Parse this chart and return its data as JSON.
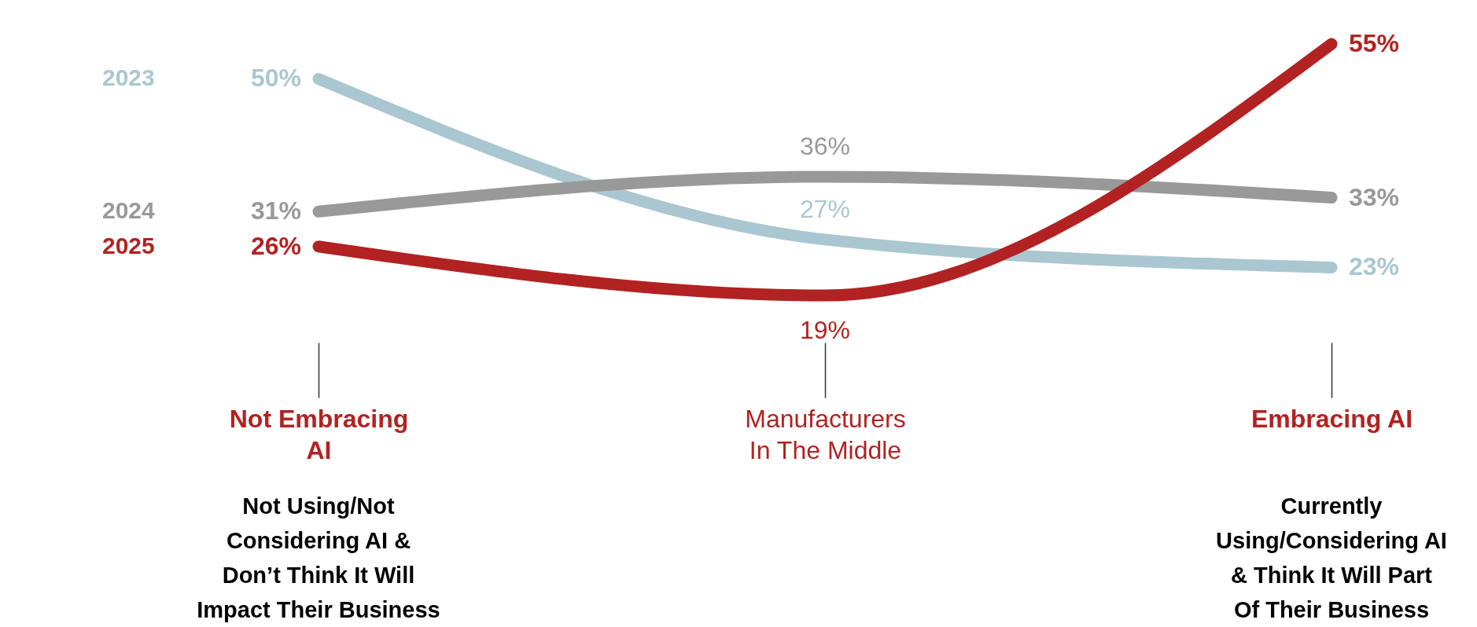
{
  "chart_data": {
    "type": "line",
    "categories": [
      "Not Embracing AI",
      "Manufacturers In The Middle",
      "Embracing AI"
    ],
    "series": [
      {
        "name": "2023",
        "color": "#aac7d1",
        "values": [
          50,
          27,
          23
        ],
        "value_labels": [
          "50%",
          "27%",
          "23%"
        ]
      },
      {
        "name": "2024",
        "color": "#999999",
        "values": [
          31,
          36,
          33
        ],
        "value_labels": [
          "31%",
          "36%",
          "33%"
        ]
      },
      {
        "name": "2025",
        "color": "#b22222",
        "values": [
          26,
          19,
          55
        ],
        "value_labels": [
          "26%",
          "19%",
          "55%"
        ]
      }
    ],
    "legend": false,
    "grid": false,
    "marker": "none",
    "line_style": "solid",
    "annotations": [
      "Not Using/Not Considering AI & Don’t Think It Will Impact Their Business",
      "Currently Using/Considering AI & Think It Will Part Of Their Business"
    ]
  }
}
